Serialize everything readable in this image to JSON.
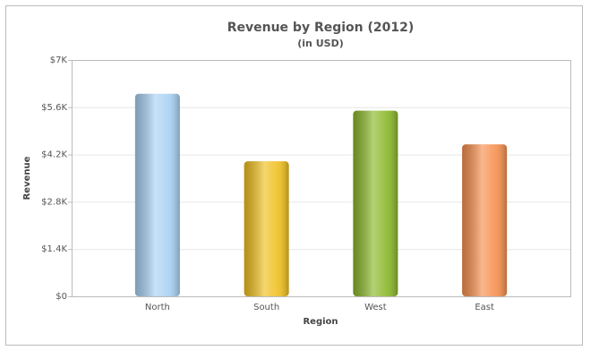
{
  "chart_data": {
    "type": "bar",
    "title": "Revenue by Region (2012)",
    "subtitle": "(in USD)",
    "x_label": "Region",
    "y_label": "Revenue",
    "categories": [
      "North",
      "South",
      "West",
      "East"
    ],
    "values": [
      6000,
      4000,
      5500,
      4500
    ],
    "colors": [
      "#a9d1f3",
      "#f0c020",
      "#8ab82a",
      "#f7904e"
    ],
    "ylim": [
      0,
      7000
    ],
    "yticks": [
      {
        "value": 0,
        "label": "$0"
      },
      {
        "value": 1400,
        "label": "$1.4K"
      },
      {
        "value": 2800,
        "label": "$2.8K"
      },
      {
        "value": 4200,
        "label": "$4.2K"
      },
      {
        "value": 5600,
        "label": "$5.6K"
      },
      {
        "value": 7000,
        "label": "$7K"
      }
    ],
    "grid": true
  }
}
